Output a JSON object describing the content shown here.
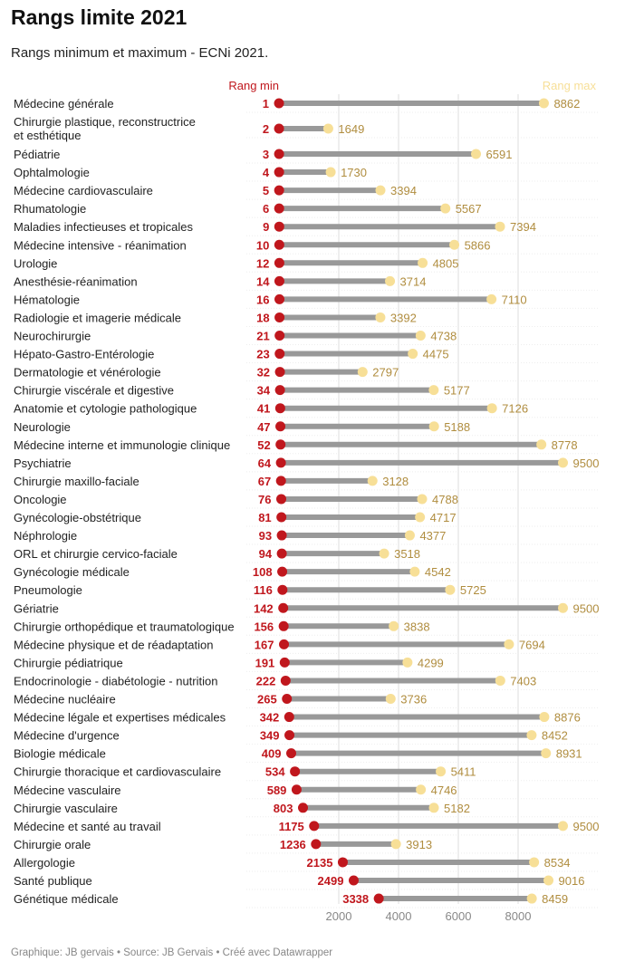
{
  "header": {
    "title": "Rangs limite 2021",
    "subtitle": "Rangs minimum et maximum - ECNi 2021."
  },
  "footer": {
    "text": "Graphique: JB gervais • Source: JB Gervais • Créé avec Datawrapper"
  },
  "colors": {
    "min": "#c0171d",
    "max": "#f7df97",
    "max_label": "#b08d3f",
    "bar": "#999999",
    "grid": "#dddddd"
  },
  "chart_data": {
    "type": "range-bar",
    "title": "Rangs limite 2021",
    "subtitle": "Rangs minimum et maximum - ECNi 2021.",
    "legend": {
      "min": "Rang min",
      "max": "Rang max"
    },
    "legend_placement": "top",
    "xlim": [
      0,
      9500
    ],
    "xticks": [
      2000,
      4000,
      6000,
      8000
    ],
    "grid": true,
    "categories": [
      "Médecine générale",
      "Chirurgie plastique, reconstructrice et esthétique",
      "Pédiatrie",
      "Ophtalmologie",
      "Médecine cardiovasculaire",
      "Rhumatologie",
      "Maladies infectieuses et tropicales",
      "Médecine intensive - réanimation",
      "Urologie",
      "Anesthésie-réanimation",
      "Hématologie",
      "Radiologie et imagerie médicale",
      "Neurochirurgie",
      "Hépato-Gastro-Entérologie",
      "Dermatologie et vénérologie",
      "Chirurgie viscérale et digestive",
      "Anatomie et cytologie pathologique",
      "Neurologie",
      "Médecine interne et immunologie clinique",
      "Psychiatrie",
      "Chirurgie maxillo-faciale",
      "Oncologie",
      "Gynécologie-obstétrique",
      "Néphrologie",
      "ORL et chirurgie cervico-faciale",
      "Gynécologie médicale",
      "Pneumologie",
      "Gériatrie",
      "Chirurgie orthopédique et traumatologique",
      "Médecine physique et de réadaptation",
      "Chirurgie pédiatrique",
      "Endocrinologie - diabétologie - nutrition",
      "Médecine nucléaire",
      "Médecine légale et expertises médicales",
      "Médecine d'urgence",
      "Biologie médicale",
      "Chirurgie thoracique et cardiovasculaire",
      "Médecine vasculaire",
      "Chirurgie vasculaire",
      "Médecine et santé au travail",
      "Chirurgie orale",
      "Allergologie",
      "Santé publique",
      "Génétique médicale"
    ],
    "series": [
      {
        "name": "Rang min",
        "values": [
          1,
          2,
          3,
          4,
          5,
          6,
          9,
          10,
          12,
          14,
          16,
          18,
          21,
          23,
          32,
          34,
          41,
          47,
          52,
          64,
          67,
          76,
          81,
          93,
          94,
          108,
          116,
          142,
          156,
          167,
          191,
          222,
          265,
          342,
          349,
          409,
          534,
          589,
          803,
          1175,
          1236,
          2135,
          2499,
          3338
        ]
      },
      {
        "name": "Rang max",
        "values": [
          8862,
          1649,
          6591,
          1730,
          3394,
          5567,
          7394,
          5866,
          4805,
          3714,
          7110,
          3392,
          4738,
          4475,
          2797,
          5177,
          7126,
          5188,
          8778,
          9500,
          3128,
          4788,
          4717,
          4377,
          3518,
          4542,
          5725,
          9500,
          3838,
          7694,
          4299,
          7403,
          3736,
          8876,
          8452,
          8931,
          5411,
          4746,
          5182,
          9500,
          3913,
          8534,
          9016,
          8459
        ]
      }
    ]
  }
}
